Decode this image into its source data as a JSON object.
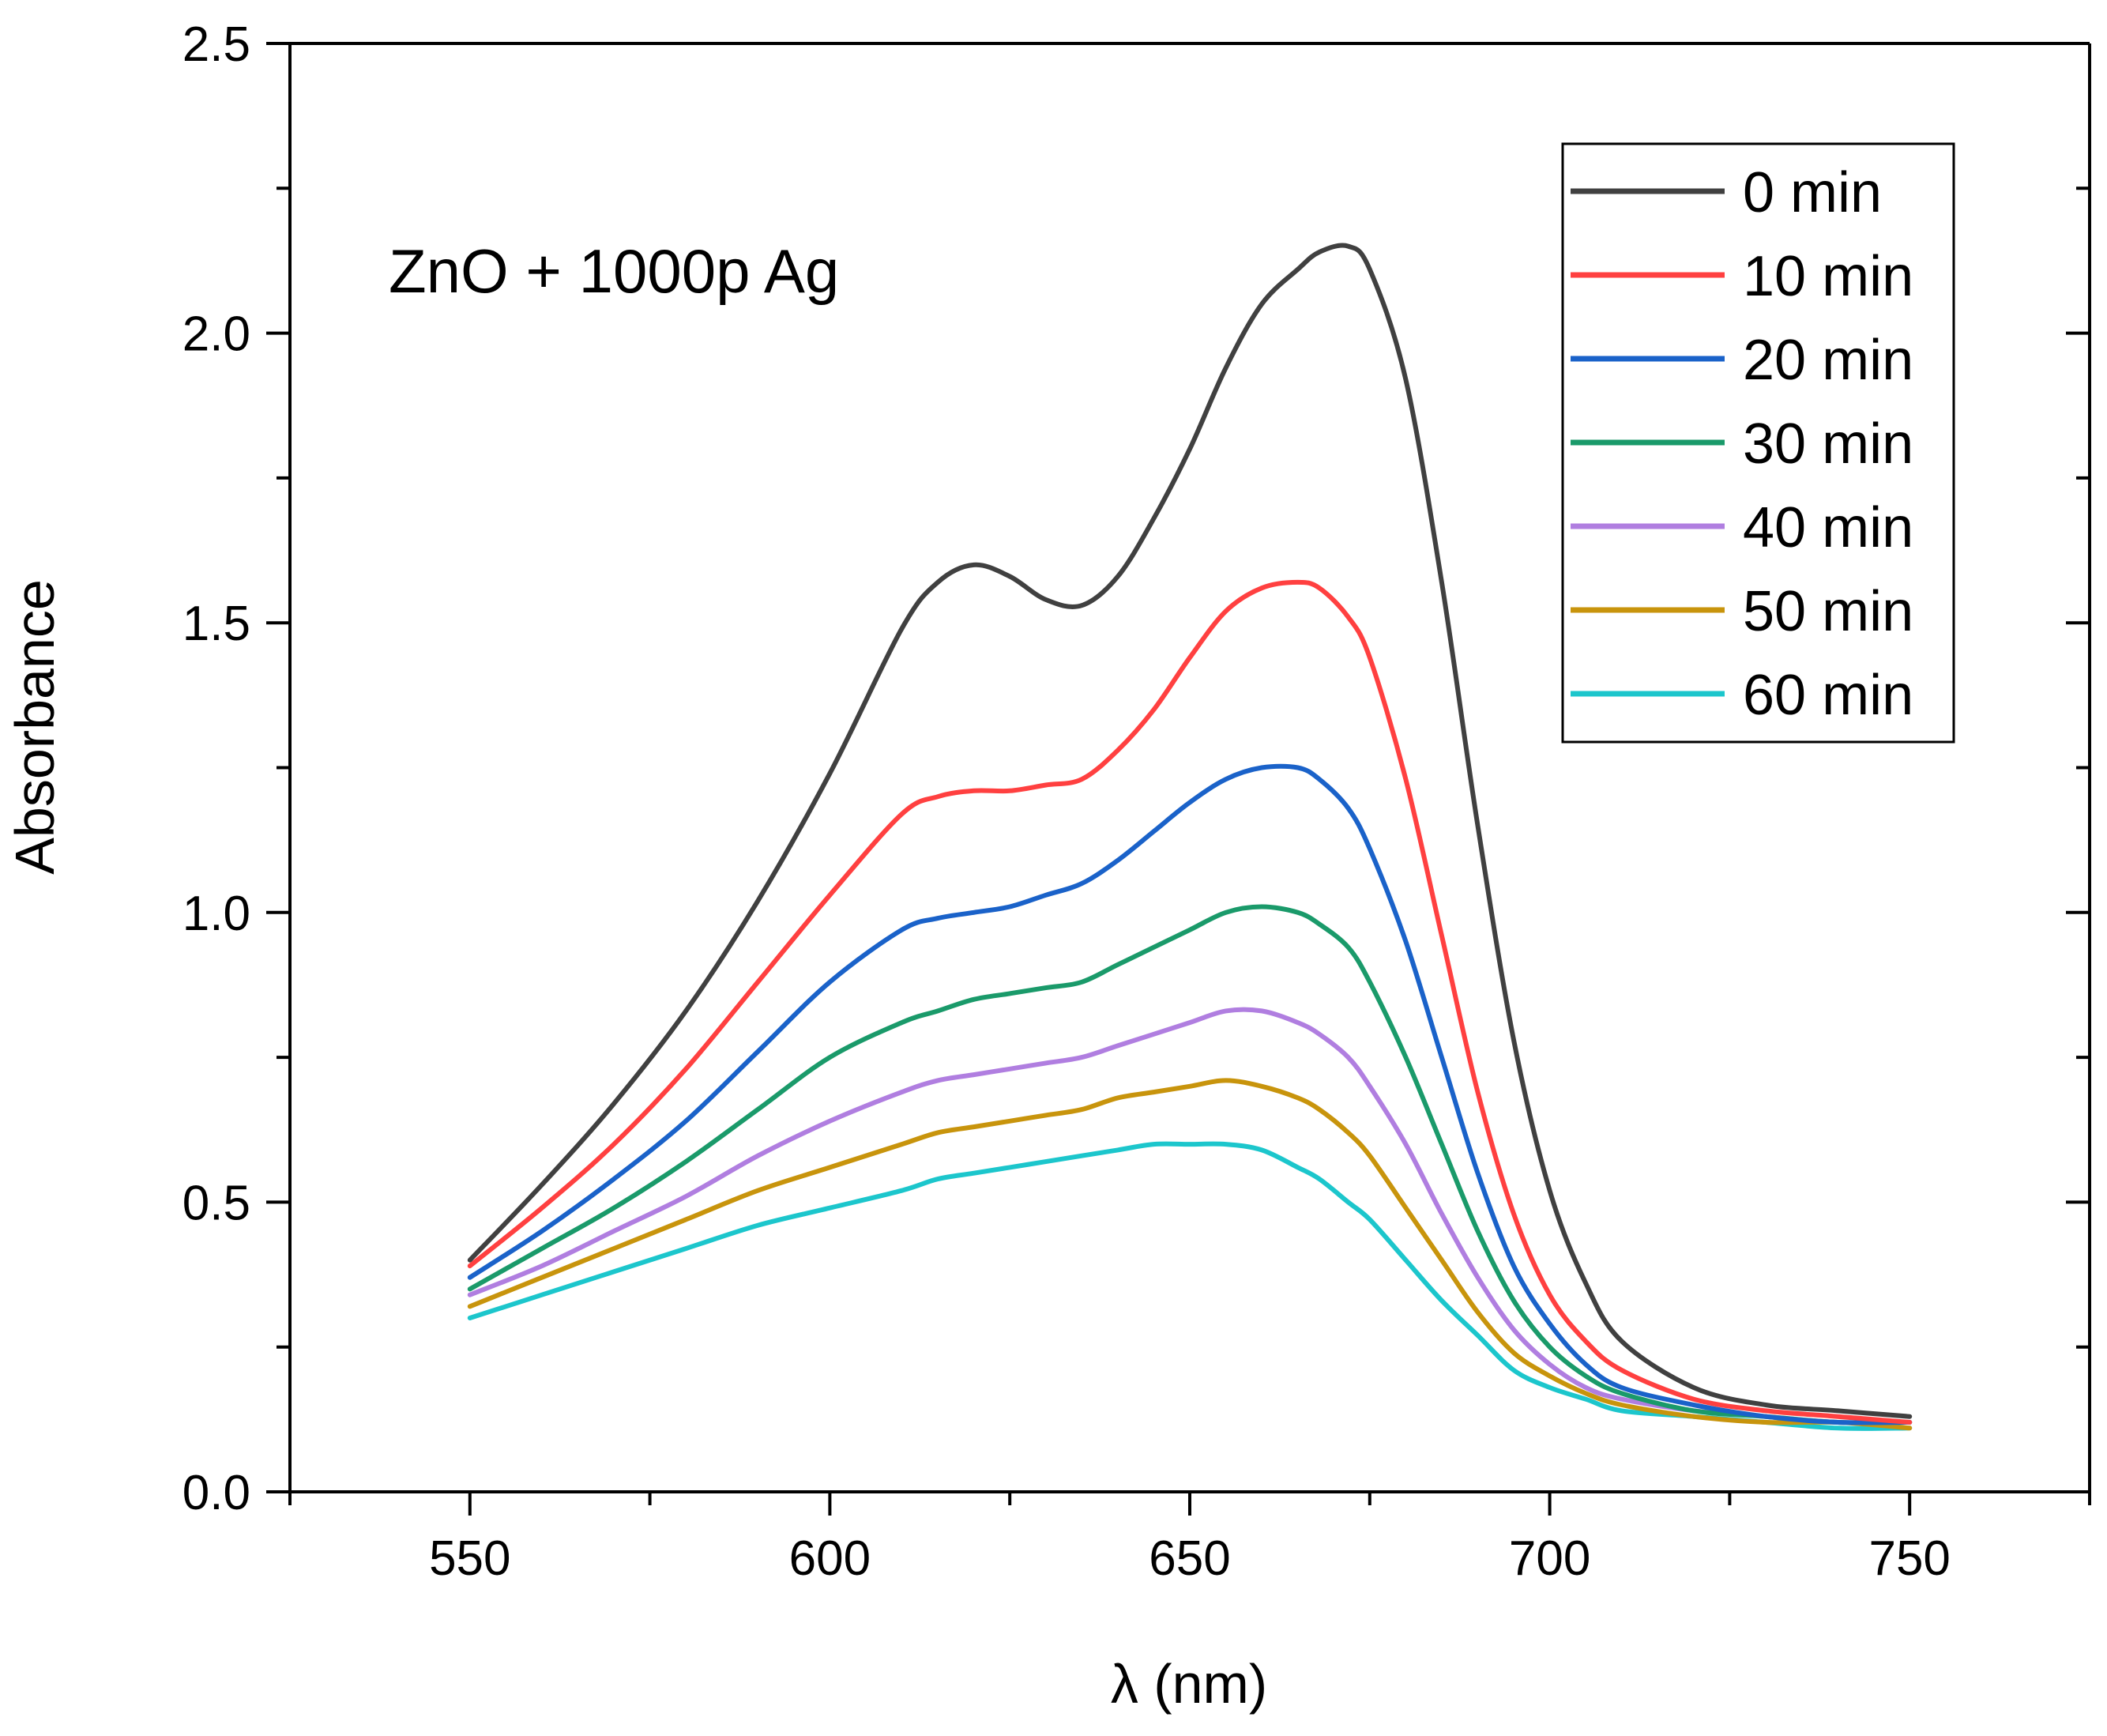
{
  "chart_data": {
    "type": "line",
    "title": "",
    "annotation": "ZnO + 1000p Ag",
    "xlabel": "λ (nm)",
    "ylabel": "Absorbance",
    "xlim": [
      525,
      775
    ],
    "ylim": [
      0.0,
      2.5
    ],
    "xticks": [
      550,
      600,
      650,
      700,
      750
    ],
    "xtick_labels": [
      "550",
      "600",
      "650",
      "700",
      "750"
    ],
    "yticks": [
      0.0,
      0.5,
      1.0,
      1.5,
      2.0,
      2.5
    ],
    "ytick_labels": [
      "0.0",
      "0.5",
      "1.0",
      "1.5",
      "2.0",
      "2.5"
    ],
    "grid": false,
    "legend_position": "top-right",
    "x": [
      550,
      560,
      570,
      580,
      590,
      600,
      610,
      615,
      620,
      625,
      630,
      635,
      640,
      645,
      650,
      655,
      660,
      665,
      668,
      672,
      675,
      680,
      685,
      690,
      695,
      700,
      705,
      710,
      720,
      730,
      740,
      750
    ],
    "series": [
      {
        "name": "0 min",
        "color": "#404040",
        "values": [
          0.4,
          0.53,
          0.67,
          0.83,
          1.02,
          1.24,
          1.49,
          1.57,
          1.6,
          1.58,
          1.54,
          1.53,
          1.58,
          1.68,
          1.8,
          1.94,
          2.05,
          2.11,
          2.14,
          2.15,
          2.11,
          1.92,
          1.57,
          1.15,
          0.78,
          0.52,
          0.36,
          0.26,
          0.18,
          0.15,
          0.14,
          0.13
        ]
      },
      {
        "name": "10 min",
        "color": "#ff4040",
        "values": [
          0.39,
          0.49,
          0.6,
          0.73,
          0.88,
          1.03,
          1.17,
          1.2,
          1.21,
          1.21,
          1.22,
          1.23,
          1.28,
          1.35,
          1.44,
          1.52,
          1.56,
          1.57,
          1.56,
          1.51,
          1.44,
          1.23,
          0.96,
          0.69,
          0.48,
          0.34,
          0.26,
          0.21,
          0.16,
          0.14,
          0.13,
          0.12
        ]
      },
      {
        "name": "20 min",
        "color": "#1a62c9",
        "values": [
          0.37,
          0.45,
          0.54,
          0.64,
          0.76,
          0.88,
          0.97,
          0.99,
          1.0,
          1.01,
          1.03,
          1.05,
          1.09,
          1.14,
          1.19,
          1.23,
          1.25,
          1.25,
          1.23,
          1.18,
          1.11,
          0.95,
          0.75,
          0.55,
          0.39,
          0.29,
          0.22,
          0.18,
          0.15,
          0.13,
          0.12,
          0.12
        ]
      },
      {
        "name": "30 min",
        "color": "#1a9a6a",
        "values": [
          0.35,
          0.42,
          0.49,
          0.57,
          0.66,
          0.75,
          0.81,
          0.83,
          0.85,
          0.86,
          0.87,
          0.88,
          0.91,
          0.94,
          0.97,
          1.0,
          1.01,
          1.0,
          0.98,
          0.94,
          0.88,
          0.75,
          0.6,
          0.45,
          0.33,
          0.25,
          0.2,
          0.17,
          0.14,
          0.13,
          0.12,
          0.12
        ]
      },
      {
        "name": "40 min",
        "color": "#b07ee0",
        "values": [
          0.34,
          0.39,
          0.45,
          0.51,
          0.58,
          0.64,
          0.69,
          0.71,
          0.72,
          0.73,
          0.74,
          0.75,
          0.77,
          0.79,
          0.81,
          0.83,
          0.83,
          0.81,
          0.79,
          0.75,
          0.7,
          0.6,
          0.48,
          0.37,
          0.28,
          0.22,
          0.18,
          0.16,
          0.14,
          0.13,
          0.12,
          0.12
        ]
      },
      {
        "name": "50 min",
        "color": "#c8940c",
        "values": [
          0.32,
          0.37,
          0.42,
          0.47,
          0.52,
          0.56,
          0.6,
          0.62,
          0.63,
          0.64,
          0.65,
          0.66,
          0.68,
          0.69,
          0.7,
          0.71,
          0.7,
          0.68,
          0.66,
          0.62,
          0.58,
          0.49,
          0.4,
          0.31,
          0.24,
          0.2,
          0.17,
          0.15,
          0.13,
          0.12,
          0.12,
          0.11
        ]
      },
      {
        "name": "60 min",
        "color": "#1cc6cc",
        "values": [
          0.3,
          0.34,
          0.38,
          0.42,
          0.46,
          0.49,
          0.52,
          0.54,
          0.55,
          0.56,
          0.57,
          0.58,
          0.59,
          0.6,
          0.6,
          0.6,
          0.59,
          0.56,
          0.54,
          0.5,
          0.47,
          0.4,
          0.33,
          0.27,
          0.21,
          0.18,
          0.16,
          0.14,
          0.13,
          0.12,
          0.11,
          0.11
        ]
      }
    ]
  }
}
